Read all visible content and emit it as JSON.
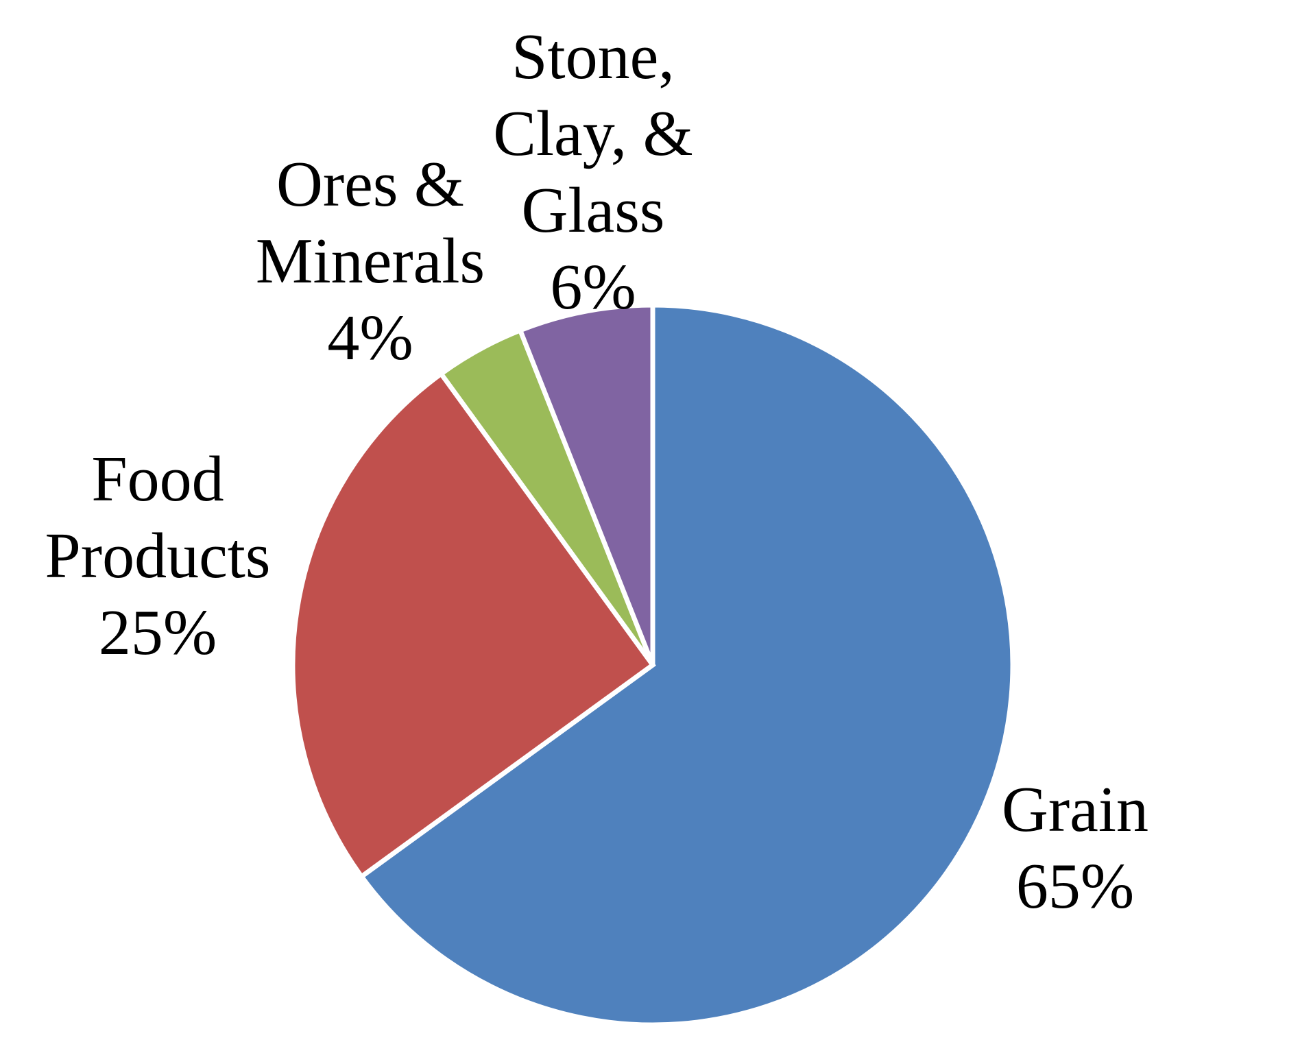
{
  "chart_data": {
    "type": "pie",
    "title": "",
    "start_angle_deg": 0,
    "direction": "clockwise",
    "slices": [
      {
        "name": "Grain",
        "label_lines": [
          "Grain",
          "65%"
        ],
        "value": 65,
        "color": "#4F81BD"
      },
      {
        "name": "Food Products",
        "label_lines": [
          "Food",
          "Products",
          "25%"
        ],
        "value": 25,
        "color": "#C0504D"
      },
      {
        "name": "Ores & Minerals",
        "label_lines": [
          "Ores &",
          "Minerals",
          "4%"
        ],
        "value": 4,
        "color": "#9BBB59"
      },
      {
        "name": "Stone, Clay, & Glass",
        "label_lines": [
          "Stone,",
          "Clay, &",
          "Glass",
          "6%"
        ],
        "value": 6,
        "color": "#8064A2"
      }
    ]
  }
}
